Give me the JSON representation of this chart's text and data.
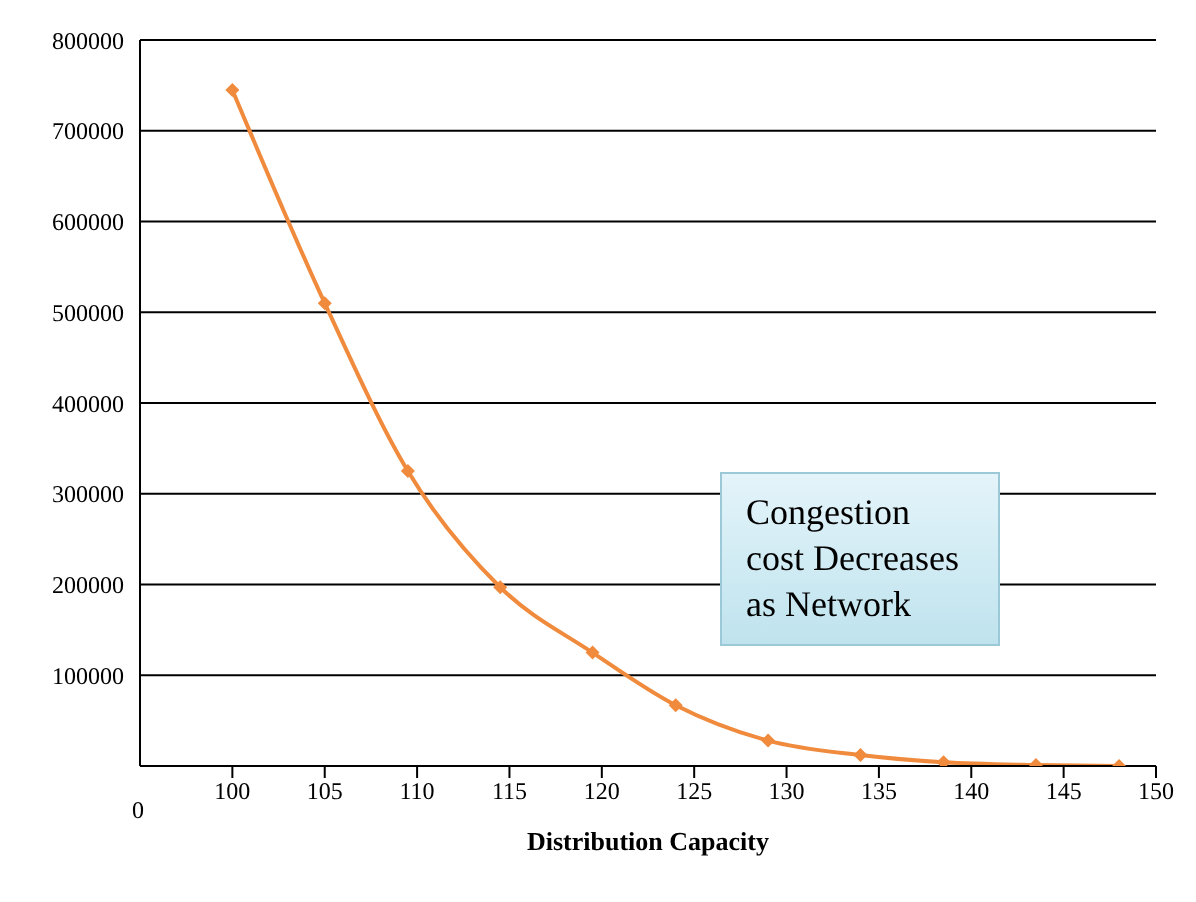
{
  "chart_data": {
    "type": "line",
    "xlabel": "Distribution Capacity",
    "x": [
      100,
      105,
      109.5,
      114.5,
      119.5,
      124,
      129,
      134,
      138.5,
      143.5,
      148
    ],
    "series": [
      {
        "color": "#f08a3c",
        "values": [
          745000,
          510000,
          325000,
          197000,
          125000,
          67000,
          28000,
          12000,
          4000,
          1000,
          0
        ]
      }
    ],
    "xlim": [
      95,
      150
    ],
    "xticks": [
      100,
      105,
      110,
      115,
      120,
      125,
      130,
      135,
      140,
      145,
      150
    ],
    "ylim": [
      0,
      800000
    ],
    "yticks": [
      {
        "value": 0,
        "label": null
      },
      100000,
      200000,
      300000,
      400000,
      500000,
      600000,
      700000,
      800000
    ],
    "grid": "y",
    "marker": "diamond",
    "line_style": "solid",
    "legend": false,
    "annotations": [
      "0",
      "Congestion cost Decreases as Network"
    ]
  }
}
